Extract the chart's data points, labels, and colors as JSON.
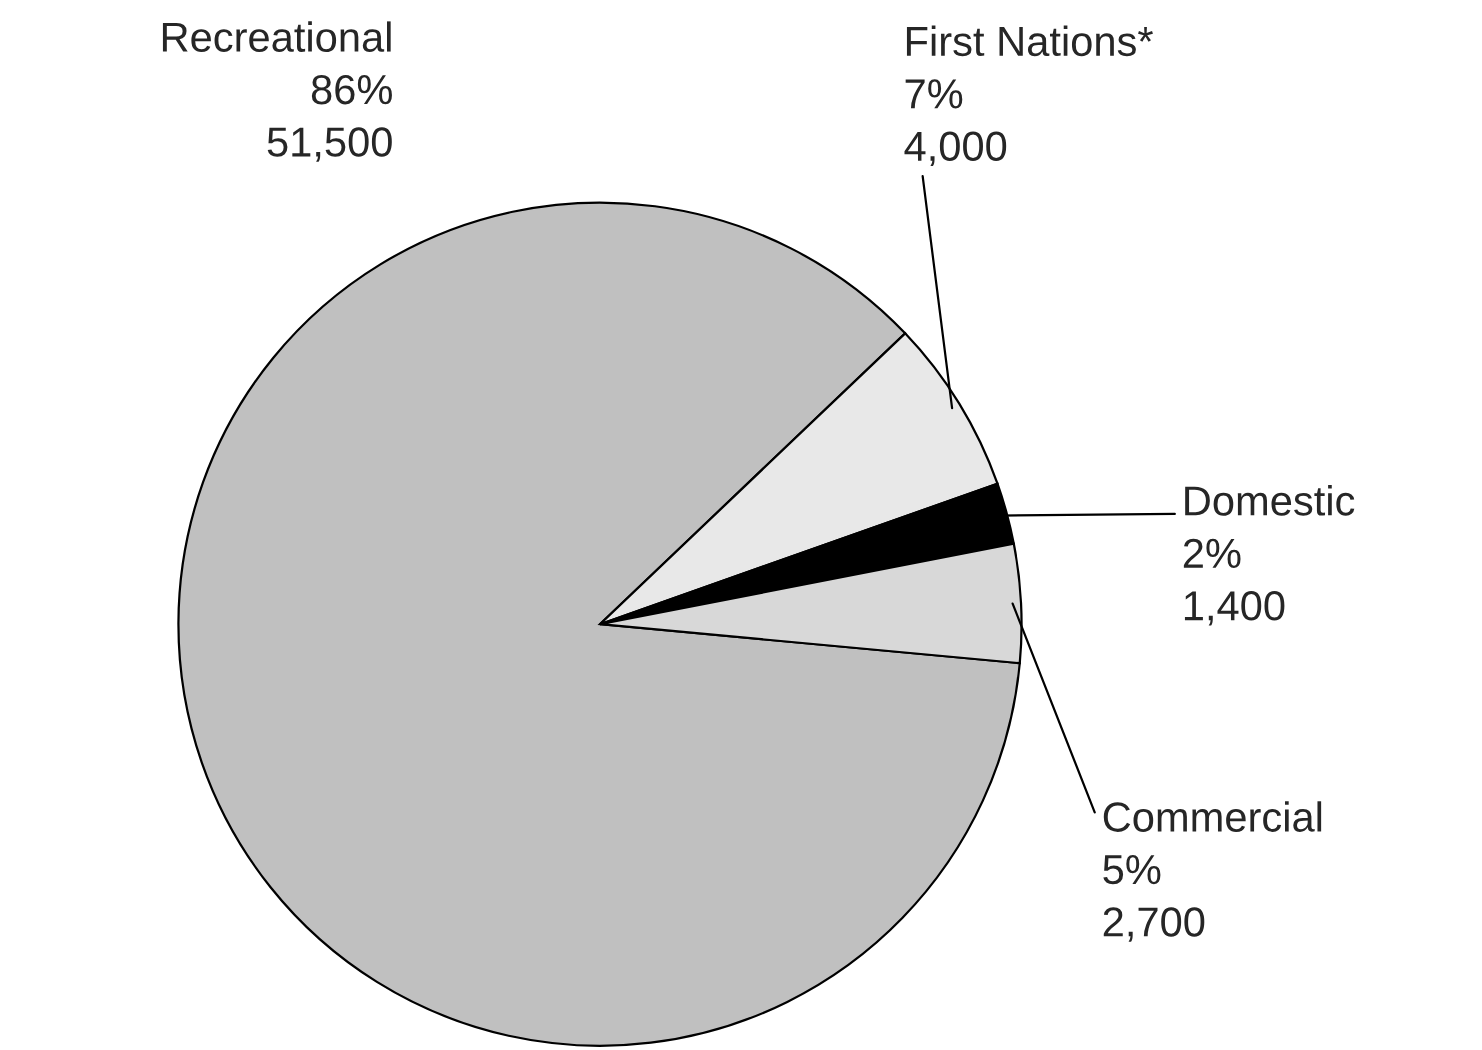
{
  "chart_data": {
    "type": "pie",
    "categories": [
      "Recreational",
      "First Nations*",
      "Domestic",
      "Commercial"
    ],
    "values": [
      51500,
      4000,
      1400,
      2700
    ],
    "value_labels": [
      "86%\n51,500",
      "7%\n4,000",
      "2%\n1,400",
      "5%\n2,700"
    ],
    "colors": [
      "#c0c0c0",
      "#e8e8e8",
      "#000000",
      "#d8d8d8"
    ]
  }
}
